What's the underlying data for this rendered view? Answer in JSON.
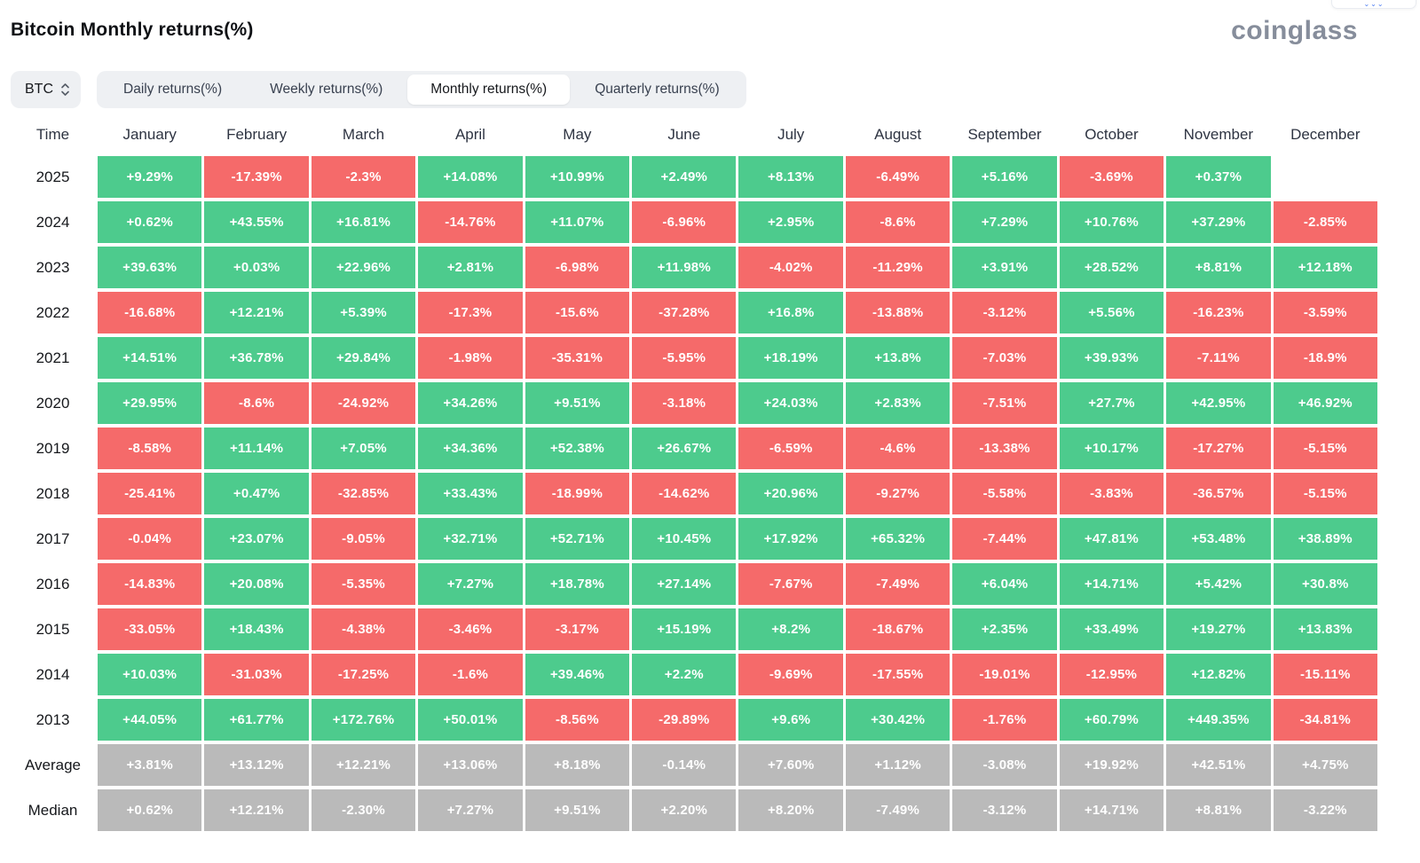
{
  "header": {
    "title": "Bitcoin Monthly returns(%)",
    "logo": "coinglass"
  },
  "controls": {
    "symbol": "BTC",
    "tabs": [
      {
        "name": "tab-daily-returns",
        "label": "Daily returns(%)",
        "active": false
      },
      {
        "name": "tab-weekly-returns",
        "label": "Weekly returns(%)",
        "active": false
      },
      {
        "name": "tab-monthly-returns",
        "label": "Monthly returns(%)",
        "active": true
      },
      {
        "name": "tab-quarterly-returns",
        "label": "Quarterly returns(%)",
        "active": false
      }
    ]
  },
  "colors": {
    "positive": "#4DCB8D",
    "negative": "#F56A6A",
    "summary": "#BABABA",
    "cell_text": "#FFFFFF"
  },
  "chart_data": {
    "type": "heatmap",
    "title": "Bitcoin Monthly returns(%)",
    "columns": [
      "Time",
      "January",
      "February",
      "March",
      "April",
      "May",
      "June",
      "July",
      "August",
      "September",
      "October",
      "November",
      "December"
    ],
    "rows": [
      {
        "label": "2025",
        "type": "year",
        "values": [
          "+9.29%",
          "-17.39%",
          "-2.3%",
          "+14.08%",
          "+10.99%",
          "+2.49%",
          "+8.13%",
          "-6.49%",
          "+5.16%",
          "-3.69%",
          "+0.37%",
          null
        ]
      },
      {
        "label": "2024",
        "type": "year",
        "values": [
          "+0.62%",
          "+43.55%",
          "+16.81%",
          "-14.76%",
          "+11.07%",
          "-6.96%",
          "+2.95%",
          "-8.6%",
          "+7.29%",
          "+10.76%",
          "+37.29%",
          "-2.85%"
        ]
      },
      {
        "label": "2023",
        "type": "year",
        "values": [
          "+39.63%",
          "+0.03%",
          "+22.96%",
          "+2.81%",
          "-6.98%",
          "+11.98%",
          "-4.02%",
          "-11.29%",
          "+3.91%",
          "+28.52%",
          "+8.81%",
          "+12.18%"
        ]
      },
      {
        "label": "2022",
        "type": "year",
        "values": [
          "-16.68%",
          "+12.21%",
          "+5.39%",
          "-17.3%",
          "-15.6%",
          "-37.28%",
          "+16.8%",
          "-13.88%",
          "-3.12%",
          "+5.56%",
          "-16.23%",
          "-3.59%"
        ]
      },
      {
        "label": "2021",
        "type": "year",
        "values": [
          "+14.51%",
          "+36.78%",
          "+29.84%",
          "-1.98%",
          "-35.31%",
          "-5.95%",
          "+18.19%",
          "+13.8%",
          "-7.03%",
          "+39.93%",
          "-7.11%",
          "-18.9%"
        ]
      },
      {
        "label": "2020",
        "type": "year",
        "values": [
          "+29.95%",
          "-8.6%",
          "-24.92%",
          "+34.26%",
          "+9.51%",
          "-3.18%",
          "+24.03%",
          "+2.83%",
          "-7.51%",
          "+27.7%",
          "+42.95%",
          "+46.92%"
        ]
      },
      {
        "label": "2019",
        "type": "year",
        "values": [
          "-8.58%",
          "+11.14%",
          "+7.05%",
          "+34.36%",
          "+52.38%",
          "+26.67%",
          "-6.59%",
          "-4.6%",
          "-13.38%",
          "+10.17%",
          "-17.27%",
          "-5.15%"
        ]
      },
      {
        "label": "2018",
        "type": "year",
        "values": [
          "-25.41%",
          "+0.47%",
          "-32.85%",
          "+33.43%",
          "-18.99%",
          "-14.62%",
          "+20.96%",
          "-9.27%",
          "-5.58%",
          "-3.83%",
          "-36.57%",
          "-5.15%"
        ]
      },
      {
        "label": "2017",
        "type": "year",
        "values": [
          "-0.04%",
          "+23.07%",
          "-9.05%",
          "+32.71%",
          "+52.71%",
          "+10.45%",
          "+17.92%",
          "+65.32%",
          "-7.44%",
          "+47.81%",
          "+53.48%",
          "+38.89%"
        ]
      },
      {
        "label": "2016",
        "type": "year",
        "values": [
          "-14.83%",
          "+20.08%",
          "-5.35%",
          "+7.27%",
          "+18.78%",
          "+27.14%",
          "-7.67%",
          "-7.49%",
          "+6.04%",
          "+14.71%",
          "+5.42%",
          "+30.8%"
        ]
      },
      {
        "label": "2015",
        "type": "year",
        "values": [
          "-33.05%",
          "+18.43%",
          "-4.38%",
          "-3.46%",
          "-3.17%",
          "+15.19%",
          "+8.2%",
          "-18.67%",
          "+2.35%",
          "+33.49%",
          "+19.27%",
          "+13.83%"
        ]
      },
      {
        "label": "2014",
        "type": "year",
        "values": [
          "+10.03%",
          "-31.03%",
          "-17.25%",
          "-1.6%",
          "+39.46%",
          "+2.2%",
          "-9.69%",
          "-17.55%",
          "-19.01%",
          "-12.95%",
          "+12.82%",
          "-15.11%"
        ]
      },
      {
        "label": "2013",
        "type": "year",
        "values": [
          "+44.05%",
          "+61.77%",
          "+172.76%",
          "+50.01%",
          "-8.56%",
          "-29.89%",
          "+9.6%",
          "+30.42%",
          "-1.76%",
          "+60.79%",
          "+449.35%",
          "-34.81%"
        ]
      },
      {
        "label": "Average",
        "type": "summary",
        "values": [
          "+3.81%",
          "+13.12%",
          "+12.21%",
          "+13.06%",
          "+8.18%",
          "-0.14%",
          "+7.60%",
          "+1.12%",
          "-3.08%",
          "+19.92%",
          "+42.51%",
          "+4.75%"
        ]
      },
      {
        "label": "Median",
        "type": "summary",
        "values": [
          "+0.62%",
          "+12.21%",
          "-2.30%",
          "+7.27%",
          "+9.51%",
          "+2.20%",
          "+8.20%",
          "-7.49%",
          "-3.12%",
          "+14.71%",
          "+8.81%",
          "-3.22%"
        ]
      }
    ]
  }
}
